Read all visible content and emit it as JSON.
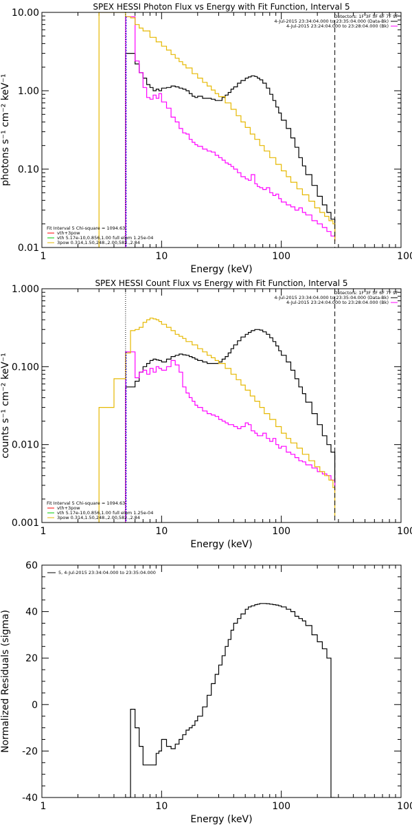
{
  "chart_data": [
    {
      "type": "line",
      "title": "SPEX HESSI Photon Flux vs Energy with Fit Function, Interval 5",
      "xlabel": "Energy (keV)",
      "ylabel": "photons s⁻¹ cm⁻² keV⁻¹",
      "xscale": "log",
      "yscale": "log",
      "xlim": [
        1,
        1000
      ],
      "ylim": [
        0.01,
        10
      ],
      "x_ticklabels": [
        "1",
        "10",
        "100",
        "1000"
      ],
      "y_ticklabels": [
        "0.01",
        "0.10",
        "1.00",
        "10.00"
      ],
      "legend_top": {
        "detectors": "Detectors: 1F 3F 5F 6F 7F 9F",
        "entries": [
          {
            "text": "4-Jul-2015 23:34:04.000 to 23:35:04.000 (Data-Bk)",
            "color": "#000000"
          },
          {
            "text": "4-Jul-2015 23:24:04.000 to 23:28:04.000 (Bk)",
            "color": "#ff00ff"
          }
        ]
      },
      "legend_fit": {
        "header": "Fit Interval 5   Chi-square = 1094.63",
        "entries": [
          {
            "text": "vth+3pow",
            "color": "#ff0000"
          },
          {
            "text": "vth 5.17e-10,0.856,1.00  full elem 1.25e-04",
            "color": "#00cc00"
          },
          {
            "text": "3pow 0.314,1.50,248.,2.00,582.,2.84",
            "color": "#e6b800"
          }
        ]
      },
      "vlines": [
        {
          "x": 5.0,
          "style": "dotted",
          "color": "#000000"
        },
        {
          "x": 280,
          "style": "dashed",
          "color": "#000000"
        }
      ],
      "series": [
        {
          "color": "#000000",
          "x": [
            5,
            5.5,
            6,
            6.5,
            7,
            7.5,
            8,
            8.5,
            9,
            9.5,
            10,
            11,
            12,
            13,
            14,
            15,
            16,
            17,
            18,
            19,
            20,
            22,
            24,
            26,
            28,
            30,
            32,
            34,
            36,
            38,
            40,
            43,
            46,
            50,
            53,
            56,
            60,
            63,
            66,
            70,
            75,
            80,
            85,
            90,
            95,
            100,
            110,
            120,
            130,
            140,
            150,
            160,
            180,
            200,
            220,
            240,
            260,
            280
          ],
          "y": [
            3.0,
            3.0,
            2.2,
            1.7,
            1.45,
            1.2,
            1.1,
            1.0,
            1.05,
            1.0,
            1.08,
            1.1,
            1.15,
            1.12,
            1.08,
            1.05,
            1.0,
            0.92,
            0.85,
            0.82,
            0.85,
            0.8,
            0.8,
            0.78,
            0.75,
            0.75,
            0.82,
            0.88,
            0.95,
            1.05,
            1.12,
            1.25,
            1.35,
            1.45,
            1.5,
            1.55,
            1.52,
            1.45,
            1.38,
            1.25,
            1.08,
            0.9,
            0.75,
            0.62,
            0.52,
            0.42,
            0.33,
            0.25,
            0.19,
            0.14,
            0.11,
            0.085,
            0.062,
            0.045,
            0.035,
            0.028,
            0.023,
            0.013
          ]
        },
        {
          "color": "#ff00ff",
          "x": [
            5,
            5.5,
            6,
            6.5,
            7,
            7.5,
            8,
            8.5,
            9,
            9.5,
            10,
            11,
            12,
            13,
            14,
            15,
            16,
            17,
            18,
            19,
            20,
            22,
            24,
            26,
            28,
            30,
            32,
            34,
            36,
            38,
            40,
            43,
            46,
            50,
            53,
            56,
            60,
            63,
            66,
            70,
            75,
            80,
            85,
            90,
            95,
            100,
            110,
            120,
            130,
            140,
            150,
            160,
            180,
            200,
            220,
            240,
            260,
            280
          ],
          "y": [
            8.8,
            8.8,
            2.4,
            1.7,
            1.1,
            0.82,
            0.78,
            0.88,
            0.8,
            0.92,
            0.72,
            0.6,
            0.46,
            0.4,
            0.33,
            0.29,
            0.28,
            0.24,
            0.22,
            0.205,
            0.195,
            0.18,
            0.17,
            0.165,
            0.15,
            0.14,
            0.13,
            0.12,
            0.115,
            0.108,
            0.1,
            0.09,
            0.08,
            0.075,
            0.072,
            0.085,
            0.065,
            0.06,
            0.058,
            0.055,
            0.058,
            0.05,
            0.046,
            0.048,
            0.042,
            0.038,
            0.035,
            0.033,
            0.03,
            0.032,
            0.028,
            0.026,
            0.022,
            0.02,
            0.018,
            0.016,
            0.014,
            0.012
          ]
        },
        {
          "color": "#e6b800",
          "x": [
            3,
            5,
            5.5,
            6,
            6.5,
            7,
            8,
            9,
            10,
            11,
            12,
            13,
            14,
            15,
            16,
            18,
            20,
            22,
            24,
            26,
            28,
            30,
            34,
            38,
            42,
            46,
            50,
            55,
            60,
            66,
            72,
            80,
            90,
            100,
            110,
            120,
            135,
            150,
            170,
            190,
            210,
            230,
            250,
            270,
            280
          ],
          "y": [
            10,
            8.8,
            8.5,
            7.0,
            6.3,
            5.8,
            4.8,
            4.2,
            3.7,
            3.3,
            2.9,
            2.6,
            2.35,
            2.15,
            1.95,
            1.65,
            1.45,
            1.28,
            1.15,
            1.02,
            0.92,
            0.84,
            0.7,
            0.58,
            0.48,
            0.4,
            0.34,
            0.28,
            0.24,
            0.2,
            0.17,
            0.14,
            0.115,
            0.095,
            0.08,
            0.068,
            0.056,
            0.047,
            0.039,
            0.032,
            0.028,
            0.025,
            0.022,
            0.02,
            0.012
          ]
        }
      ]
    },
    {
      "type": "line",
      "title": "SPEX HESSI Count Flux vs Energy with Fit Function, Interval 5",
      "xlabel": "Energy (keV)",
      "ylabel": "counts s⁻¹ cm⁻² keV⁻¹",
      "xscale": "log",
      "yscale": "log",
      "xlim": [
        1,
        1000
      ],
      "ylim": [
        0.001,
        1
      ],
      "x_ticklabels": [
        "1",
        "10",
        "100",
        "1000"
      ],
      "y_ticklabels": [
        "0.001",
        "0.010",
        "0.100",
        "1.000"
      ],
      "legend_top": {
        "detectors": "Detectors: 1F 3F 5F 6F 7F 9F",
        "entries": [
          {
            "text": "4-Jul-2015 23:34:04.000 to 23:35:04.000 (Data-Bk)",
            "color": "#000000"
          },
          {
            "text": "4-Jul-2015 23:24:04.000 to 23:28:04.000 (Bk)",
            "color": "#ff00ff"
          }
        ]
      },
      "legend_fit": {
        "header": "Fit Interval 5   Chi-square = 1094.63",
        "entries": [
          {
            "text": "vth+3pow",
            "color": "#ff0000"
          },
          {
            "text": "vth 5.17e-10,0.856,1.00  full elem 1.25e-04",
            "color": "#00cc00"
          },
          {
            "text": "3pow 0.314,1.50,248.,2.00,582.,2.84",
            "color": "#e6b800"
          }
        ]
      },
      "vlines": [
        {
          "x": 5.0,
          "style": "dotted",
          "color": "#000000"
        },
        {
          "x": 280,
          "style": "dashed",
          "color": "#000000"
        }
      ],
      "series": [
        {
          "color": "#000000",
          "x": [
            5,
            5.5,
            6,
            6.5,
            7,
            7.5,
            8,
            8.5,
            9,
            9.5,
            10,
            11,
            12,
            13,
            14,
            15,
            16,
            17,
            18,
            19,
            20,
            22,
            24,
            26,
            28,
            30,
            32,
            34,
            36,
            38,
            40,
            43,
            46,
            50,
            53,
            56,
            60,
            63,
            66,
            70,
            75,
            80,
            85,
            90,
            95,
            100,
            110,
            120,
            130,
            140,
            150,
            160,
            180,
            200,
            220,
            240,
            260,
            280
          ],
          "y": [
            0.055,
            0.055,
            0.065,
            0.085,
            0.1,
            0.11,
            0.12,
            0.125,
            0.122,
            0.12,
            0.115,
            0.125,
            0.135,
            0.14,
            0.145,
            0.142,
            0.14,
            0.135,
            0.13,
            0.125,
            0.12,
            0.115,
            0.11,
            0.11,
            0.11,
            0.115,
            0.125,
            0.135,
            0.15,
            0.17,
            0.19,
            0.215,
            0.24,
            0.26,
            0.275,
            0.29,
            0.3,
            0.3,
            0.295,
            0.28,
            0.26,
            0.235,
            0.21,
            0.185,
            0.16,
            0.14,
            0.115,
            0.09,
            0.07,
            0.055,
            0.045,
            0.035,
            0.025,
            0.018,
            0.013,
            0.01,
            0.008,
            0.003
          ]
        },
        {
          "color": "#ff00ff",
          "x": [
            5,
            5.5,
            6,
            6.5,
            7,
            7.5,
            8,
            8.5,
            9,
            9.5,
            10,
            11,
            12,
            13,
            14,
            15,
            16,
            17,
            18,
            19,
            20,
            22,
            24,
            26,
            28,
            30,
            32,
            34,
            36,
            38,
            40,
            43,
            46,
            50,
            53,
            56,
            60,
            63,
            66,
            70,
            75,
            80,
            85,
            90,
            95,
            100,
            110,
            120,
            130,
            140,
            150,
            160,
            180,
            200,
            220,
            240,
            260,
            280
          ],
          "y": [
            0.155,
            0.155,
            0.072,
            0.085,
            0.09,
            0.08,
            0.095,
            0.085,
            0.1,
            0.095,
            0.09,
            0.1,
            0.12,
            0.105,
            0.085,
            0.055,
            0.046,
            0.04,
            0.036,
            0.032,
            0.03,
            0.027,
            0.025,
            0.024,
            0.023,
            0.021,
            0.02,
            0.019,
            0.018,
            0.018,
            0.017,
            0.016,
            0.017,
            0.019,
            0.018,
            0.015,
            0.014,
            0.013,
            0.013,
            0.014,
            0.012,
            0.011,
            0.012,
            0.01,
            0.009,
            0.0095,
            0.008,
            0.0075,
            0.0068,
            0.0062,
            0.006,
            0.0055,
            0.005,
            0.0045,
            0.0042,
            0.004,
            0.0035,
            0.0025
          ]
        },
        {
          "color": "#e6b800",
          "x": [
            3,
            4,
            5,
            5.5,
            6,
            6.5,
            7,
            7.5,
            8,
            8.5,
            9,
            9.5,
            10,
            11,
            12,
            13,
            14,
            15,
            16,
            18,
            20,
            22,
            24,
            26,
            28,
            30,
            34,
            38,
            42,
            46,
            50,
            55,
            60,
            66,
            72,
            80,
            90,
            100,
            110,
            120,
            135,
            150,
            170,
            190,
            210,
            230,
            250,
            270,
            280
          ],
          "y": [
            0.03,
            0.07,
            0.15,
            0.29,
            0.3,
            0.32,
            0.37,
            0.4,
            0.42,
            0.41,
            0.4,
            0.38,
            0.35,
            0.32,
            0.29,
            0.26,
            0.245,
            0.23,
            0.21,
            0.19,
            0.17,
            0.155,
            0.14,
            0.13,
            0.12,
            0.11,
            0.095,
            0.08,
            0.068,
            0.058,
            0.05,
            0.042,
            0.036,
            0.03,
            0.025,
            0.021,
            0.017,
            0.014,
            0.012,
            0.0105,
            0.009,
            0.0075,
            0.0062,
            0.0052,
            0.0045,
            0.004,
            0.0035,
            0.0028,
            0.0012
          ]
        }
      ]
    },
    {
      "type": "line",
      "title": "",
      "xlabel": "Energy (keV)",
      "ylabel": "Normalized Residuals (sigma)",
      "xscale": "log",
      "yscale": "linear",
      "xlim": [
        1,
        1000
      ],
      "ylim": [
        -40,
        60
      ],
      "x_ticklabels": [
        "1",
        "10",
        "100",
        "1000"
      ],
      "y_ticklabels": [
        "-40",
        "-20",
        "0",
        "20",
        "40",
        "60"
      ],
      "legend_top": {
        "entries": [
          {
            "text": "5,  4-Jul-2015 23:34:04.000 to 23:35:04.000",
            "color": "#000000"
          }
        ]
      },
      "series": [
        {
          "color": "#000000",
          "x": [
            5,
            5.5,
            6,
            6.5,
            7,
            7.5,
            8,
            8.5,
            9,
            9.5,
            10,
            11,
            12,
            13,
            14,
            15,
            16,
            17,
            18,
            19,
            20,
            22,
            24,
            26,
            28,
            30,
            32,
            34,
            36,
            38,
            40,
            43,
            46,
            50,
            53,
            56,
            60,
            63,
            66,
            70,
            75,
            80,
            85,
            90,
            95,
            100,
            110,
            120,
            130,
            140,
            150,
            160,
            180,
            200,
            220,
            240,
            260,
            280
          ],
          "y": [
            -42,
            -2,
            -10,
            -18,
            -26,
            -26,
            -26,
            -26,
            -21,
            -20,
            -15,
            -18,
            -19,
            -17,
            -15,
            -13,
            -11,
            -10,
            -9,
            -7,
            -5,
            -1,
            4,
            9,
            13,
            17,
            21,
            25,
            28,
            32,
            35,
            37,
            39,
            41,
            42,
            42.5,
            43,
            43.2,
            43.5,
            43.5,
            43.4,
            43.2,
            43,
            42.8,
            42.5,
            42,
            41,
            40,
            38,
            37,
            36,
            34,
            30,
            27,
            24,
            20,
            -42,
            -42
          ]
        }
      ]
    }
  ]
}
